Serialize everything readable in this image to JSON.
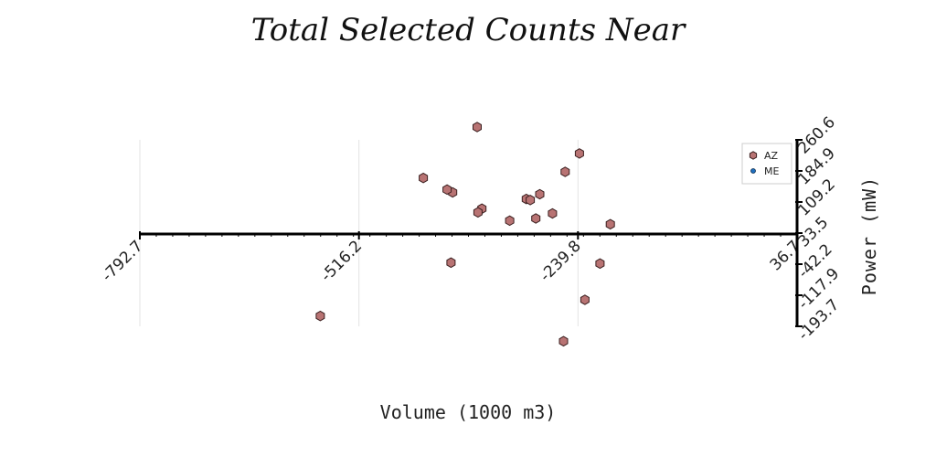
{
  "chart_data": {
    "type": "scatter",
    "title": "Total Selected Counts Near",
    "xlabel": "Volume (1000 m3)",
    "ylabel": "Power (mW)",
    "xlim": [
      -792.7,
      36.7
    ],
    "ylim": [
      -193.7,
      260.6
    ],
    "x_ticks": [
      "-792.7",
      "-516.2",
      "-239.8",
      "36.7"
    ],
    "y_ticks": [
      "260.6",
      "184.9",
      "109.2",
      "33.5",
      "-42.2",
      "-117.9",
      "-193.7"
    ],
    "grid": true,
    "legend_position": "top-right",
    "series": [
      {
        "name": "AZ",
        "color": "#b87373",
        "marker": "hexagon",
        "points": [
          [
            -565,
            -172
          ],
          [
            -400,
            -60
          ],
          [
            -435,
            155
          ],
          [
            -398,
            115
          ],
          [
            -405,
            123
          ],
          [
            -361,
            70
          ],
          [
            -367,
            296
          ],
          [
            -305,
            97
          ],
          [
            -300,
            94
          ],
          [
            -326,
            37
          ],
          [
            -293,
            43
          ],
          [
            -288,
            110
          ],
          [
            -366,
            60
          ],
          [
            -256,
            172
          ],
          [
            -238,
            223
          ],
          [
            -212,
            -62
          ],
          [
            -258,
            -225
          ],
          [
            -199,
            27
          ],
          [
            -231,
            -138
          ],
          [
            -272,
            57
          ]
        ]
      },
      {
        "name": "ME",
        "color": "#1f6fbf",
        "marker": "circle",
        "points": []
      }
    ]
  }
}
